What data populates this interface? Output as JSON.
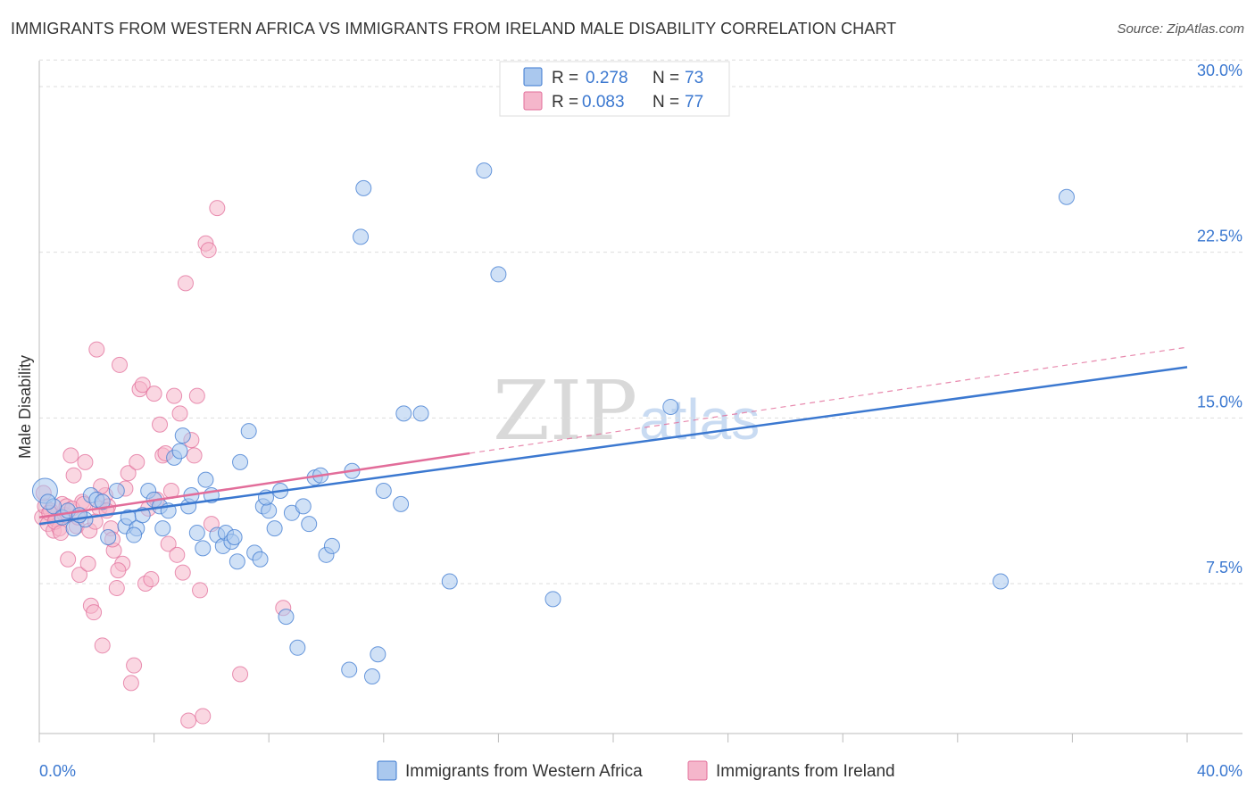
{
  "title": "IMMIGRANTS FROM WESTERN AFRICA VS IMMIGRANTS FROM IRELAND MALE DISABILITY CORRELATION CHART",
  "source": "Source: ZipAtlas.com",
  "watermark": {
    "zip": "ZIP",
    "atlas": "atlas"
  },
  "colors": {
    "blue": "#3b78d0",
    "blue_fill": "#aac8ee",
    "pink": "#e26d9a",
    "pink_fill": "#f5b6cb",
    "grid": "#dddddd"
  },
  "legend": {
    "r_label": "R =",
    "n_label": "N =",
    "series": [
      {
        "r": "0.278",
        "n": "73"
      },
      {
        "r": "0.083",
        "n": "77"
      }
    ]
  },
  "chart_data": {
    "type": "scatter",
    "title": "IMMIGRANTS FROM WESTERN AFRICA VS IMMIGRANTS FROM IRELAND MALE DISABILITY CORRELATION CHART",
    "xlabel": "",
    "ylabel": "Male Disability",
    "xlim": [
      0,
      40
    ],
    "ylim": [
      0,
      31
    ],
    "x_tick_labels": [
      "0.0%",
      "40.0%"
    ],
    "y_ticks": [
      7.5,
      15.0,
      22.5,
      30.0
    ],
    "y_tick_labels": [
      "7.5%",
      "15.0%",
      "22.5%",
      "30.0%"
    ],
    "grid": true,
    "series": [
      {
        "name": "Immigrants from Western Africa",
        "color": "#3b78d0",
        "trend": {
          "x0": 0,
          "y0": 10.2,
          "x1": 40,
          "y1": 17.3,
          "dashed_to": null
        },
        "points": [
          [
            0.2,
            11.7
          ],
          [
            0.5,
            11.0
          ],
          [
            0.8,
            10.5
          ],
          [
            1.0,
            10.8
          ],
          [
            1.2,
            10.0
          ],
          [
            1.6,
            10.4
          ],
          [
            1.8,
            11.5
          ],
          [
            2.0,
            11.3
          ],
          [
            2.4,
            9.6
          ],
          [
            2.7,
            11.7
          ],
          [
            3.0,
            10.1
          ],
          [
            3.1,
            10.5
          ],
          [
            3.4,
            10.0
          ],
          [
            3.6,
            10.6
          ],
          [
            3.8,
            11.7
          ],
          [
            4.0,
            11.3
          ],
          [
            4.2,
            11.0
          ],
          [
            4.3,
            10.0
          ],
          [
            4.5,
            10.8
          ],
          [
            4.7,
            13.2
          ],
          [
            4.9,
            13.5
          ],
          [
            5.0,
            14.2
          ],
          [
            5.2,
            11.0
          ],
          [
            5.3,
            11.5
          ],
          [
            5.5,
            9.8
          ],
          [
            5.7,
            9.1
          ],
          [
            5.8,
            12.2
          ],
          [
            6.0,
            11.5
          ],
          [
            6.2,
            9.7
          ],
          [
            6.4,
            9.2
          ],
          [
            6.5,
            9.8
          ],
          [
            6.7,
            9.4
          ],
          [
            6.8,
            9.6
          ],
          [
            7.0,
            13.0
          ],
          [
            7.3,
            14.4
          ],
          [
            7.5,
            8.9
          ],
          [
            7.7,
            8.6
          ],
          [
            7.8,
            11.0
          ],
          [
            8.0,
            10.8
          ],
          [
            8.2,
            10.0
          ],
          [
            8.4,
            11.7
          ],
          [
            8.6,
            6.0
          ],
          [
            8.8,
            10.7
          ],
          [
            9.0,
            4.6
          ],
          [
            9.2,
            11.0
          ],
          [
            9.4,
            10.2
          ],
          [
            9.6,
            12.3
          ],
          [
            9.8,
            12.4
          ],
          [
            10.0,
            8.8
          ],
          [
            10.2,
            9.2
          ],
          [
            10.8,
            3.6
          ],
          [
            10.9,
            12.6
          ],
          [
            11.2,
            23.2
          ],
          [
            11.3,
            25.4
          ],
          [
            11.6,
            3.3
          ],
          [
            11.8,
            4.3
          ],
          [
            12.0,
            11.7
          ],
          [
            12.6,
            11.1
          ],
          [
            12.7,
            15.2
          ],
          [
            13.3,
            15.2
          ],
          [
            14.3,
            7.6
          ],
          [
            15.5,
            26.2
          ],
          [
            16.0,
            21.5
          ],
          [
            17.9,
            6.8
          ],
          [
            22.0,
            15.5
          ],
          [
            33.5,
            7.6
          ],
          [
            35.8,
            25.0
          ],
          [
            0.3,
            11.2
          ],
          [
            1.4,
            10.6
          ],
          [
            2.2,
            11.2
          ],
          [
            3.3,
            9.7
          ],
          [
            6.9,
            8.5
          ],
          [
            7.9,
            11.4
          ]
        ]
      },
      {
        "name": "Immigrants from Ireland",
        "color": "#e26d9a",
        "trend": {
          "x0": 0,
          "y0": 10.5,
          "x1": 15,
          "y1": 13.4,
          "dashed_to": {
            "x": 40,
            "y": 18.2
          }
        },
        "points": [
          [
            0.1,
            10.5
          ],
          [
            0.2,
            11.0
          ],
          [
            0.3,
            10.2
          ],
          [
            0.4,
            10.8
          ],
          [
            0.5,
            9.9
          ],
          [
            0.6,
            10.4
          ],
          [
            0.7,
            10.0
          ],
          [
            0.8,
            11.1
          ],
          [
            0.9,
            10.6
          ],
          [
            1.0,
            8.6
          ],
          [
            1.1,
            13.3
          ],
          [
            1.2,
            12.4
          ],
          [
            1.3,
            10.1
          ],
          [
            1.4,
            7.9
          ],
          [
            1.5,
            11.2
          ],
          [
            1.6,
            13.0
          ],
          [
            1.7,
            8.4
          ],
          [
            1.8,
            6.5
          ],
          [
            1.9,
            6.2
          ],
          [
            2.0,
            18.1
          ],
          [
            2.1,
            10.9
          ],
          [
            2.2,
            4.7
          ],
          [
            2.3,
            11.5
          ],
          [
            2.4,
            11.0
          ],
          [
            2.5,
            10.0
          ],
          [
            2.6,
            9.0
          ],
          [
            2.7,
            7.3
          ],
          [
            2.8,
            17.4
          ],
          [
            2.9,
            8.4
          ],
          [
            3.0,
            11.8
          ],
          [
            3.1,
            12.5
          ],
          [
            3.2,
            3.0
          ],
          [
            3.3,
            3.8
          ],
          [
            3.4,
            13.0
          ],
          [
            3.5,
            16.3
          ],
          [
            3.6,
            16.5
          ],
          [
            3.7,
            7.5
          ],
          [
            3.8,
            10.9
          ],
          [
            3.9,
            7.7
          ],
          [
            4.0,
            16.1
          ],
          [
            4.1,
            11.3
          ],
          [
            4.2,
            14.7
          ],
          [
            4.3,
            13.3
          ],
          [
            4.4,
            13.4
          ],
          [
            4.5,
            9.3
          ],
          [
            4.6,
            11.7
          ],
          [
            4.7,
            16.0
          ],
          [
            4.8,
            8.8
          ],
          [
            4.9,
            15.2
          ],
          [
            5.0,
            8.0
          ],
          [
            5.1,
            21.1
          ],
          [
            5.2,
            1.3
          ],
          [
            5.3,
            14.0
          ],
          [
            5.4,
            13.3
          ],
          [
            5.5,
            16.0
          ],
          [
            5.6,
            7.2
          ],
          [
            5.7,
            1.5
          ],
          [
            5.8,
            22.9
          ],
          [
            5.9,
            22.6
          ],
          [
            6.0,
            10.2
          ],
          [
            6.2,
            24.5
          ],
          [
            7.0,
            3.4
          ],
          [
            8.5,
            6.4
          ],
          [
            0.15,
            11.6
          ],
          [
            0.35,
            10.7
          ],
          [
            0.55,
            10.3
          ],
          [
            0.75,
            9.8
          ],
          [
            0.95,
            11.0
          ],
          [
            1.15,
            10.9
          ],
          [
            1.35,
            10.5
          ],
          [
            1.55,
            11.1
          ],
          [
            1.75,
            9.9
          ],
          [
            1.95,
            10.3
          ],
          [
            2.15,
            11.9
          ],
          [
            2.35,
            10.8
          ],
          [
            2.55,
            9.5
          ],
          [
            2.75,
            8.1
          ]
        ]
      }
    ]
  },
  "bottom_legend": [
    {
      "label": "Immigrants from Western Africa"
    },
    {
      "label": "Immigrants from Ireland"
    }
  ]
}
